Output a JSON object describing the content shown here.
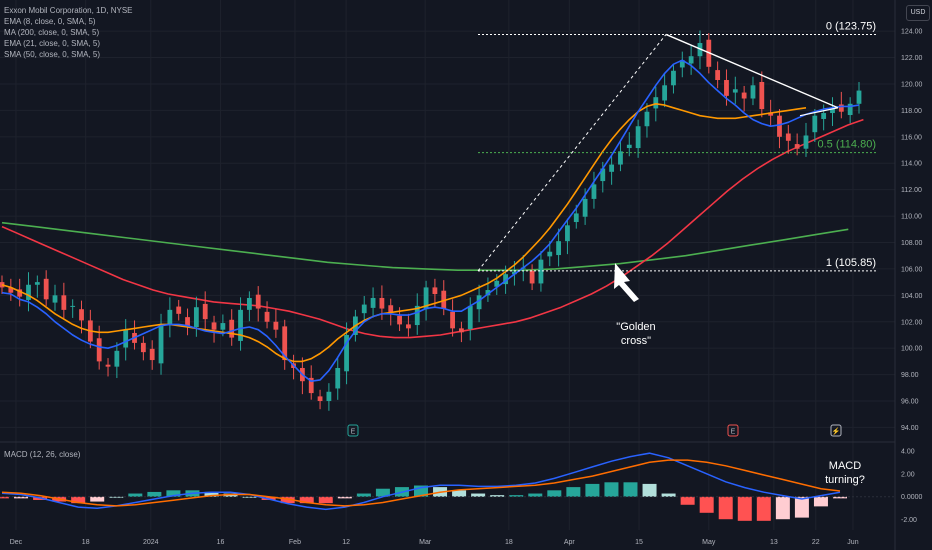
{
  "header": {
    "symbol_line": "Exxon Mobil Corporation, 1D, NYSE",
    "indicators": [
      "EMA (8, close, 0, SMA, 5)",
      "MA (200, close, 0, SMA, 5)",
      "EMA (21, close, 0, SMA, 5)",
      "SMA (50, close, 0, SMA, 5)"
    ],
    "currency_button": "USD"
  },
  "colors": {
    "background": "#131722",
    "up": "#26a69a",
    "down": "#ef5350",
    "ema8": "#2962ff",
    "ema21": "#ff9800",
    "sma50": "#f23645",
    "ma200": "#4caf50",
    "macd_line": "#2962ff",
    "signal_line": "#ff6d00",
    "fib_0": "#ffffff",
    "fib_05": "#4caf50"
  },
  "chart_data": {
    "type": "candlestick",
    "price_axis": {
      "ticks": [
        "124.00",
        "122.00",
        "120.00",
        "118.00",
        "116.00",
        "114.00",
        "112.00",
        "110.00",
        "108.00",
        "106.00",
        "104.00",
        "102.00",
        "100.00",
        "98.00",
        "96.00",
        "94.00"
      ],
      "range": [
        93.2,
        125.6
      ]
    },
    "time_axis": {
      "labels": [
        {
          "text": "Dec",
          "day": 3
        },
        {
          "text": "18",
          "day": 18
        },
        {
          "text": "2024",
          "day": 32
        },
        {
          "text": "16",
          "day": 47
        },
        {
          "text": "Feb",
          "day": 63
        },
        {
          "text": "12",
          "day": 74
        },
        {
          "text": "Mar",
          "day": 91
        },
        {
          "text": "18",
          "day": 109
        },
        {
          "text": "Apr",
          "day": 122
        },
        {
          "text": "15",
          "day": 137
        },
        {
          "text": "May",
          "day": 152
        },
        {
          "text": "13",
          "day": 166
        },
        {
          "text": "22",
          "day": 175
        },
        {
          "text": "Jun",
          "day": 183
        }
      ]
    },
    "fib_levels": [
      {
        "label": "0 (123.75)",
        "price": 123.75
      },
      {
        "label": "0.5 (114.80)",
        "price": 114.8
      },
      {
        "label": "1 (105.85)",
        "price": 105.85
      }
    ],
    "candles_close": [
      104.6,
      104.2,
      103.9,
      104.8,
      105.0,
      103.7,
      104.0,
      102.9,
      103.2,
      102.1,
      100.5,
      99.0,
      98.6,
      99.8,
      101.4,
      100.4,
      99.7,
      99.1,
      101.8,
      102.9,
      102.6,
      101.6,
      103.1,
      102.2,
      101.4,
      101.9,
      100.8,
      102.9,
      103.8,
      103.0,
      102.0,
      101.4,
      99.1,
      98.5,
      97.5,
      96.6,
      96.0,
      96.7,
      98.5,
      101.0,
      102.4,
      103.3,
      103.8,
      103.0,
      102.7,
      101.8,
      101.5,
      103.2,
      104.6,
      104.1,
      103.0,
      101.5,
      101.2,
      103.2,
      104.0,
      104.4,
      105.1,
      105.6,
      105.8,
      106.1,
      104.9,
      106.7,
      107.3,
      108.1,
      109.3,
      110.2,
      111.3,
      112.4,
      113.6,
      113.9,
      114.9,
      115.4,
      116.8,
      117.9,
      119.0,
      119.9,
      121.0,
      121.8,
      122.1,
      123.1,
      121.3,
      120.3,
      119.1,
      119.6,
      118.9,
      119.9,
      118.1,
      117.6,
      116.0,
      115.7,
      115.1,
      116.1,
      117.6,
      117.8,
      118.2,
      117.9,
      118.5,
      119.5
    ],
    "ema8": [
      104.2,
      104.1,
      103.7,
      103.5,
      103.1,
      102.6,
      102.0,
      101.5,
      101.0,
      100.6,
      100.3,
      100.1,
      100.0,
      100.2,
      100.5,
      100.8,
      101.1,
      101.4,
      101.7,
      101.8,
      101.8,
      101.7,
      101.5,
      101.3,
      101.2,
      101.1,
      101.3,
      101.5,
      101.6,
      101.4,
      100.9,
      100.2,
      99.4,
      98.7,
      98.0,
      97.5,
      97.6,
      98.3,
      99.3,
      100.4,
      101.3,
      102.0,
      102.4,
      102.6,
      102.6,
      102.5,
      102.5,
      102.7,
      103.0,
      103.1,
      103.0,
      102.8,
      102.8,
      103.2,
      103.6,
      104.1,
      104.6,
      105.1,
      105.6,
      106.1,
      106.6,
      107.2,
      107.9,
      108.8,
      109.7,
      110.6,
      111.6,
      112.6,
      113.6,
      114.6,
      115.7,
      116.8,
      117.9,
      118.9,
      119.9,
      120.8,
      121.5,
      121.8,
      121.4,
      120.8,
      120.1,
      119.5,
      118.9,
      118.4,
      117.8,
      117.3,
      117.0,
      116.8,
      116.9,
      117.1,
      117.4,
      117.7,
      117.9,
      118.1,
      118.2,
      118.3,
      118.3,
      118.4
    ],
    "ema21": [
      104.8,
      104.6,
      104.3,
      104.0,
      103.6,
      103.1,
      102.6,
      102.2,
      101.8,
      101.5,
      101.3,
      101.2,
      101.2,
      101.3,
      101.4,
      101.5,
      101.6,
      101.7,
      101.8,
      101.8,
      101.7,
      101.6,
      101.5,
      101.4,
      101.3,
      101.2,
      101.1,
      101.0,
      100.8,
      100.5,
      100.1,
      99.6,
      99.2,
      99.0,
      99.0,
      99.2,
      99.6,
      100.1,
      100.7,
      101.2,
      101.7,
      102.1,
      102.4,
      102.6,
      102.7,
      102.8,
      102.9,
      103.0,
      103.2,
      103.4,
      103.6,
      103.8,
      104.0,
      104.3,
      104.6,
      104.9,
      105.3,
      105.8,
      106.3,
      106.9,
      107.6,
      108.3,
      109.1,
      110.0,
      110.9,
      111.9,
      112.9,
      113.9,
      114.9,
      115.8,
      116.6,
      117.3,
      117.9,
      118.3,
      118.5,
      118.4,
      118.2,
      118.0,
      117.8,
      117.6,
      117.5,
      117.4,
      117.4,
      117.4,
      117.5,
      117.6,
      117.7,
      117.8,
      117.9,
      118.0,
      118.1,
      118.2
    ],
    "sma50": [
      109.2,
      108.7,
      108.2,
      107.7,
      107.2,
      106.7,
      106.2,
      105.7,
      105.2,
      104.8,
      104.4,
      104.1,
      103.9,
      103.7,
      103.5,
      103.4,
      103.3,
      103.2,
      103.0,
      102.8,
      102.5,
      102.2,
      101.8,
      101.4,
      101.1,
      100.9,
      100.8,
      100.8,
      100.9,
      101.0,
      101.2,
      101.4,
      101.6,
      101.8,
      102.0,
      102.3,
      102.7,
      103.1,
      103.6,
      104.1,
      104.7,
      105.4,
      106.2,
      107.0,
      107.9,
      108.9,
      109.9,
      110.9,
      111.9,
      112.8,
      113.6,
      114.3,
      114.9,
      115.4,
      115.9,
      116.4,
      116.9,
      117.3
    ],
    "ma200": [
      109.5,
      109.2,
      108.9,
      108.6,
      108.3,
      108.0,
      107.7,
      107.4,
      107.1,
      106.8,
      106.5,
      106.3,
      106.1,
      106.0,
      105.9,
      105.9,
      105.9,
      106.0,
      106.2,
      106.4,
      106.7,
      107.0,
      107.4,
      107.8,
      108.2,
      108.6,
      109.0
    ],
    "macd_panel": {
      "ticks": [
        "4.00",
        "2.00",
        "0.0000",
        "-2.00"
      ],
      "range": [
        -2.9,
        4.6
      ],
      "macd": [
        0.3,
        0.2,
        -0.1,
        -0.5,
        -0.9,
        -1.0,
        -0.8,
        -0.5,
        -0.2,
        0.1,
        0.3,
        0.4,
        0.4,
        0.2,
        -0.2,
        -0.6,
        -0.9,
        -1.1,
        -0.9,
        -0.5,
        0.0,
        0.4,
        0.8,
        1.0,
        1.0,
        0.9,
        0.9,
        1.0,
        1.2,
        1.6,
        2.1,
        2.6,
        3.1,
        3.5,
        3.8,
        3.4,
        2.7,
        2.0,
        1.3,
        0.8,
        0.4,
        0.1,
        -0.2,
        0.1,
        0.4
      ],
      "signal": [
        0.4,
        0.3,
        0.1,
        -0.2,
        -0.5,
        -0.7,
        -0.8,
        -0.7,
        -0.5,
        -0.3,
        -0.1,
        0.1,
        0.2,
        0.2,
        0.0,
        -0.2,
        -0.5,
        -0.7,
        -0.8,
        -0.7,
        -0.5,
        -0.2,
        0.1,
        0.4,
        0.6,
        0.7,
        0.8,
        0.9,
        1.0,
        1.2,
        1.5,
        1.8,
        2.2,
        2.6,
        3.0,
        3.2,
        3.2,
        3.0,
        2.7,
        2.3,
        1.9,
        1.5,
        1.1,
        0.7,
        0.5
      ]
    }
  },
  "annotations": {
    "golden_cross_line1": "\"Golden",
    "golden_cross_line2": "cross\"",
    "macd_line1": "MACD",
    "macd_line2": "turning?"
  },
  "macd_legend": "MACD (12, 26, close)",
  "event_markers": [
    "E",
    "E",
    "⚡"
  ]
}
